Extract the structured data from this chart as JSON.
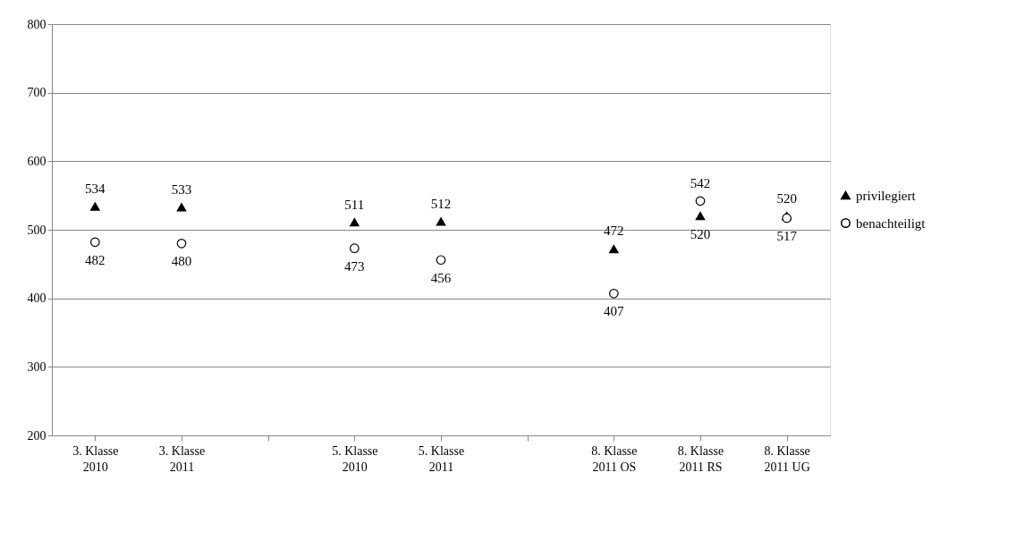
{
  "chart_data": {
    "type": "scatter",
    "categories": [
      "3. Klasse 2010",
      "3. Klasse 2011",
      null,
      "5. Klasse 2010",
      "5. Klasse 2011",
      null,
      "8. Klasse 2011 OS",
      "8. Klasse 2011 RS",
      "8. Klasse 2011 UG"
    ],
    "series": [
      {
        "name": "privilegiert",
        "color": "#000000",
        "marker": "triangle",
        "values": [
          534,
          533,
          null,
          511,
          512,
          null,
          472,
          520,
          520
        ]
      },
      {
        "name": "benachteiligt",
        "color": "#000000",
        "marker": "circle",
        "values": [
          482,
          480,
          null,
          473,
          456,
          null,
          407,
          542,
          517
        ]
      }
    ],
    "ylim": [
      200,
      800
    ],
    "yticks": [
      200,
      300,
      400,
      500,
      600,
      700,
      800
    ],
    "grid": "y",
    "legend": "right",
    "data_labels": true
  }
}
